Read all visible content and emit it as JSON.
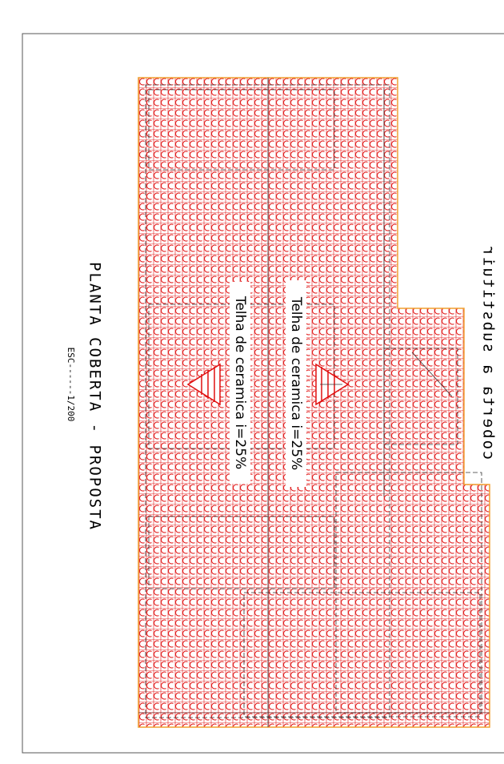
{
  "drawing": {
    "title": "PLANTA COBERTA - PROPOSTA",
    "scale": "ESC------1/200",
    "labels": [
      "Telha de ceramica i=25%",
      "Telha de ceramica i=25%"
    ],
    "note": "coberta a substituir"
  }
}
